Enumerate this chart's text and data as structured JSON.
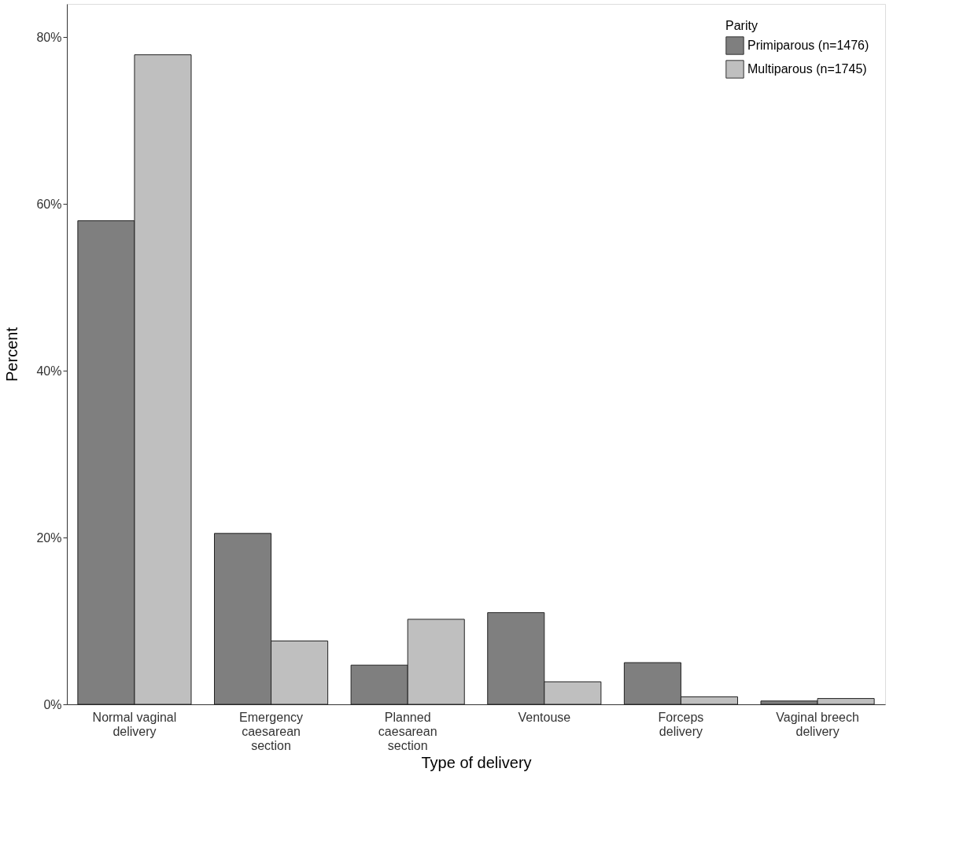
{
  "chart_data": {
    "type": "bar",
    "xlabel": "Type of delivery",
    "ylabel": "Percent",
    "legend_title": "Parity",
    "legend": "top right",
    "grid": false,
    "categories": [
      "Normal vaginal delivery",
      "Emergency caesarean section",
      "Planned caesarean section",
      "Ventouse",
      "Forceps delivery",
      "Vaginal breech delivery"
    ],
    "ylim": [
      0,
      84
    ],
    "yticks": [
      {
        "value": 0,
        "label": "0%"
      },
      {
        "value": 20,
        "label": "20%"
      },
      {
        "value": 40,
        "label": "40%"
      },
      {
        "value": 60,
        "label": "60%"
      },
      {
        "value": 80,
        "label": "80%"
      }
    ],
    "series": [
      {
        "name": "Primiparous (n=1476)",
        "color": "#7f7f7f",
        "values": [
          58.0,
          20.5,
          4.7,
          11.0,
          5.0,
          0.4
        ]
      },
      {
        "name": "Multiparous (n=1745)",
        "color": "#bfbfbf",
        "values": [
          77.9,
          7.6,
          10.2,
          2.7,
          0.9,
          0.7
        ]
      }
    ]
  }
}
